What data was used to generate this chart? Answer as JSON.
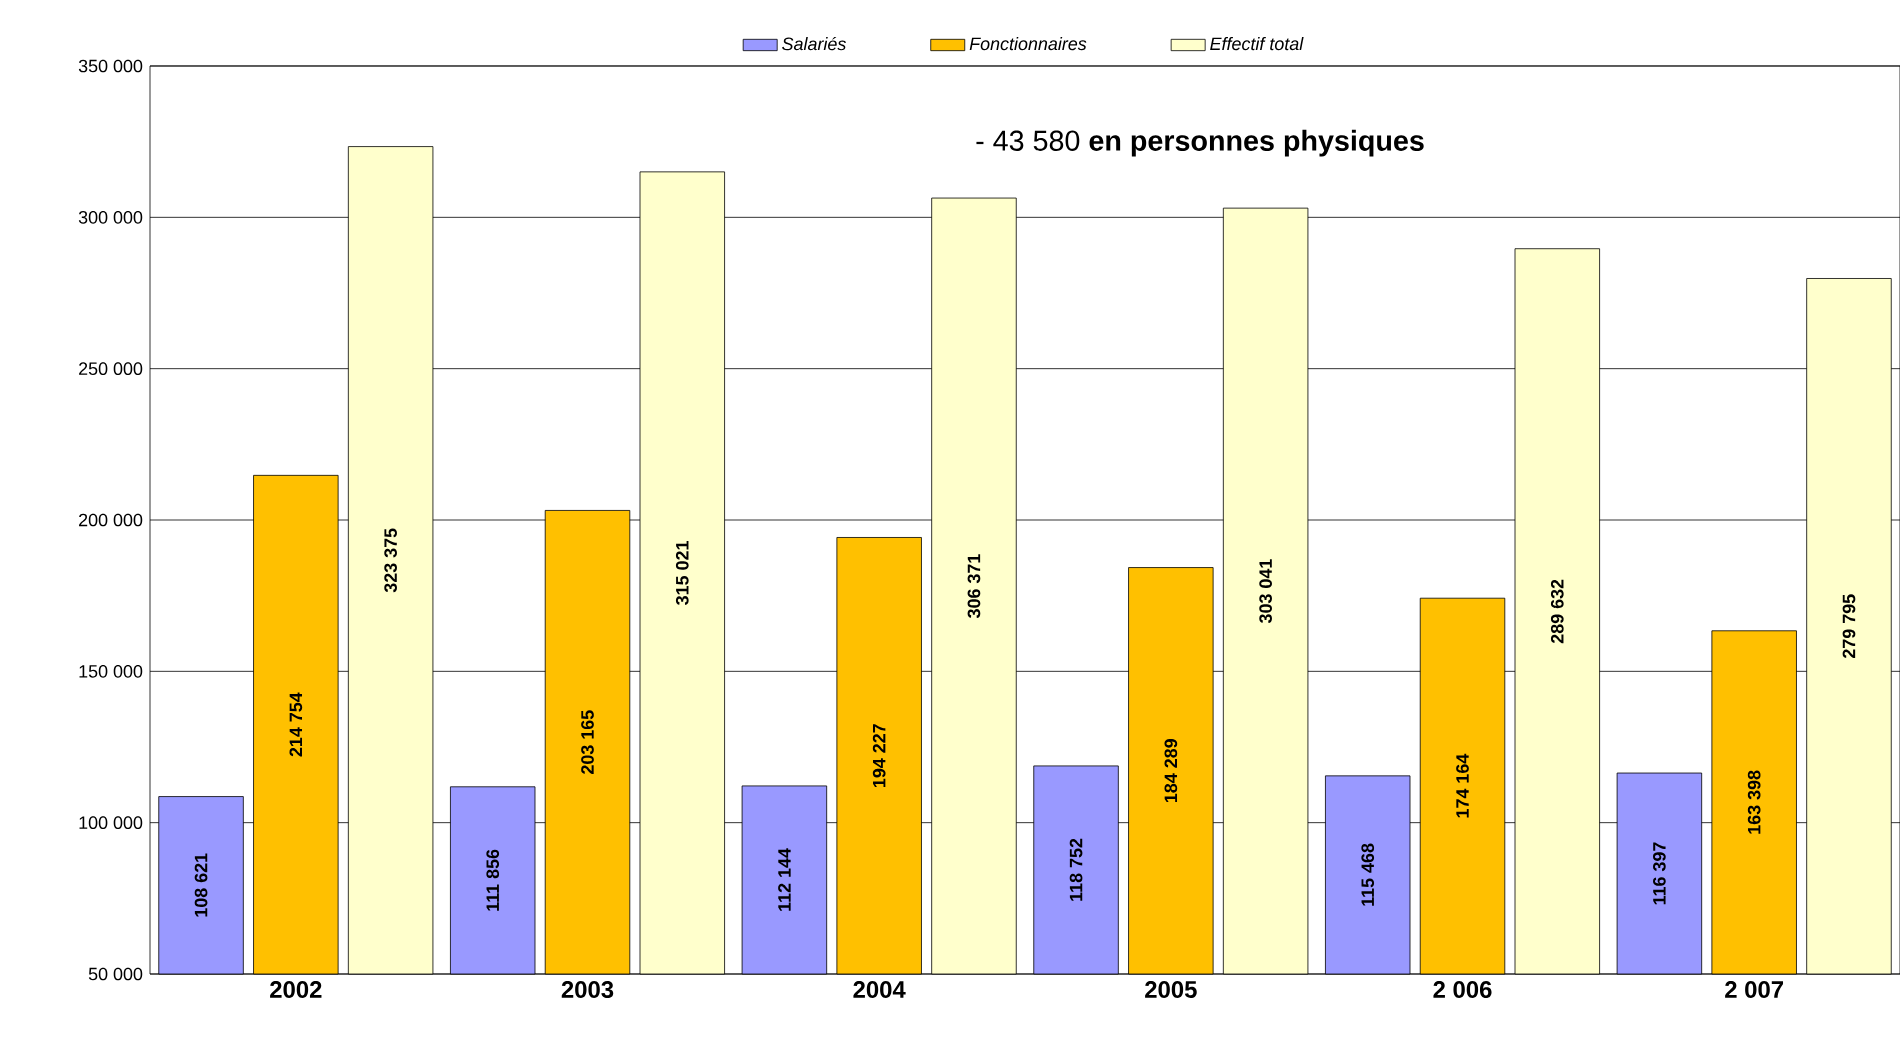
{
  "chart_data": {
    "type": "bar",
    "categories": [
      "2002",
      "2003",
      "2004",
      "2005",
      "2 006",
      "2 007"
    ],
    "series": [
      {
        "name": "Salariés",
        "color": "#9999ff",
        "values": [
          108621,
          111856,
          112144,
          118752,
          115468,
          116397
        ],
        "value_labels": [
          "108 621",
          "111 856",
          "112 144",
          "118 752",
          "115 468",
          "116 397"
        ]
      },
      {
        "name": "Fonctionnaires",
        "color": "#ffc000",
        "values": [
          214754,
          203165,
          194227,
          184289,
          174164,
          163398
        ],
        "value_labels": [
          "214 754",
          "203 165",
          "194 227",
          "184 289",
          "174 164",
          "163 398"
        ]
      },
      {
        "name": "Effectif total",
        "color": "#ffffcc",
        "values": [
          323375,
          315021,
          306371,
          303041,
          289632,
          279795
        ],
        "value_labels": [
          "323 375",
          "315 021",
          "306 371",
          "303 041",
          "289 632",
          "279 795"
        ]
      }
    ],
    "ylim": [
      50000,
      350000
    ],
    "yticks": [
      {
        "value": 50000,
        "label": "50 000"
      },
      {
        "value": 100000,
        "label": "100 000"
      },
      {
        "value": 150000,
        "label": "150 000"
      },
      {
        "value": 200000,
        "label": "200 000"
      },
      {
        "value": 250000,
        "label": "250 000"
      },
      {
        "value": 300000,
        "label": "300 000"
      },
      {
        "value": 350000,
        "label": "350 000"
      }
    ],
    "grid": "y",
    "legend": "top",
    "annotations": [
      "- 43 580 **en personnes physiques**"
    ]
  }
}
